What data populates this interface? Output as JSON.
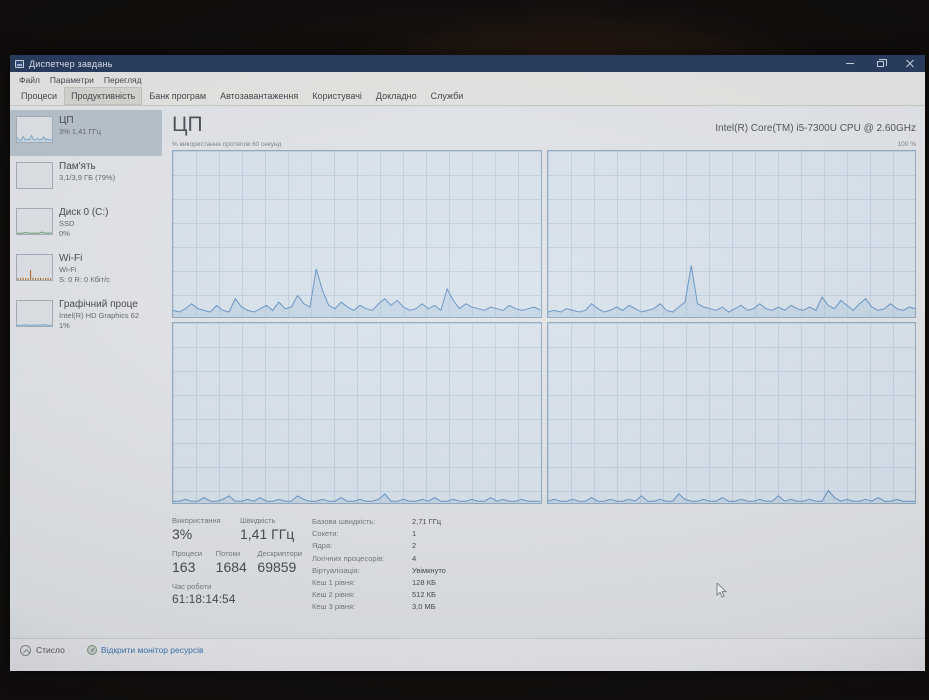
{
  "window": {
    "title": "Диспетчер завдань"
  },
  "menu": {
    "items": [
      "Файл",
      "Параметри",
      "Перегляд"
    ]
  },
  "tabs": {
    "items": [
      {
        "label": "Процеси",
        "selected": false
      },
      {
        "label": "Продуктивність",
        "selected": true
      },
      {
        "label": "Банк програм",
        "selected": false
      },
      {
        "label": "Автозавантаження",
        "selected": false
      },
      {
        "label": "Користувачі",
        "selected": false
      },
      {
        "label": "Докладно",
        "selected": false
      },
      {
        "label": "Служби",
        "selected": false
      }
    ]
  },
  "sidebar": {
    "items": [
      {
        "title": "ЦП",
        "line1": "3% 1,41 ГГц",
        "line2": "",
        "selected": true,
        "spark": {
          "type": "line",
          "color": "#7da7cf",
          "values": [
            18,
            8,
            6,
            22,
            8,
            12,
            8,
            26,
            10,
            8,
            14,
            8,
            10,
            20,
            8,
            12,
            6,
            10
          ]
        }
      },
      {
        "title": "Пам'ять",
        "line1": "3,1/3,9 ГБ (79%)",
        "line2": "",
        "selected": false,
        "spark": {
          "type": "none",
          "color": "#9a8fc0",
          "values": []
        }
      },
      {
        "title": "Диск 0 (C:)",
        "line1": "SSD",
        "line2": "0%",
        "selected": false,
        "spark": {
          "type": "line",
          "color": "#6f9f6f",
          "values": [
            3,
            3,
            4,
            6,
            3,
            3,
            4,
            3,
            8,
            3,
            4,
            3
          ]
        }
      },
      {
        "title": "Wi-Fi",
        "line1": "Wi-Fi",
        "line2": "S: 0 R: 0 Кбіт/с",
        "selected": false,
        "spark": {
          "type": "bars",
          "color": "#b06a2a",
          "values": [
            8,
            7,
            9,
            7,
            8,
            40,
            9,
            7,
            8,
            9,
            7,
            8,
            9,
            7
          ]
        }
      },
      {
        "title": "Графічний проце",
        "line1": "Intel(R) HD Graphics 62",
        "line2": "1%",
        "selected": false,
        "spark": {
          "type": "line",
          "color": "#7da7cf",
          "values": [
            3,
            3,
            5,
            3,
            3,
            4,
            3,
            5,
            3,
            3
          ]
        }
      }
    ]
  },
  "main": {
    "title": "ЦП",
    "cpu_name": "Intel(R) Core(TM) i5-7300U CPU @ 2.60GHz",
    "graph_label": "% використання протягом 60 секунд",
    "graph_max_label": "100 %"
  },
  "stats": {
    "left": {
      "usage_label": "Використання",
      "usage_value": "3%",
      "speed_label": "Швидкість",
      "speed_value": "1,41 ГГц",
      "processes_label": "Процеси",
      "processes_value": "163",
      "threads_label": "Потоки",
      "threads_value": "1684",
      "handles_label": "Дескриптори",
      "handles_value": "69859",
      "uptime_label": "Час роботи",
      "uptime_value": "61:18:14:54"
    },
    "right": {
      "rows": [
        {
          "label": "Базова швидкість:",
          "value": "2,71 ГГц"
        },
        {
          "label": "Сокети:",
          "value": "1"
        },
        {
          "label": "Ядра:",
          "value": "2"
        },
        {
          "label": "Логічних процесорів:",
          "value": "4"
        },
        {
          "label": "Віртуалізація:",
          "value": "Увімкнуто"
        },
        {
          "label": "Кеш 1 рівня:",
          "value": "128 КБ"
        },
        {
          "label": "Кеш 2 рівня:",
          "value": "512 КБ"
        },
        {
          "label": "Кеш 3 рівня:",
          "value": "3,0 МБ"
        }
      ]
    }
  },
  "status_bar": {
    "collapse_label": "Стисло",
    "link_label": "Відкрити монітор ресурсів"
  },
  "colors": {
    "titlebar": "#1d3154",
    "graph_line": "#6595c6",
    "graph_fill": "#a8c4de",
    "graph_bg": "#dee8f1",
    "selected_sidebar": "#b9c3cc",
    "link": "#3a72b0",
    "wifi_bars": "#b06a2a"
  },
  "chart_data": [
    {
      "type": "area",
      "title": "CPU usage core graph top-left",
      "xlabel": "60 секунд",
      "ylabel": "% використання",
      "ylim": [
        0,
        100
      ],
      "grid": true,
      "legend": "none",
      "values": [
        4,
        3,
        5,
        8,
        5,
        4,
        3,
        7,
        4,
        3,
        11,
        6,
        4,
        3,
        5,
        7,
        4,
        9,
        5,
        6,
        13,
        8,
        6,
        29,
        16,
        7,
        5,
        9,
        6,
        4,
        7,
        5,
        4,
        8,
        11,
        7,
        10,
        6,
        4,
        5,
        8,
        5,
        7,
        4,
        17,
        10,
        5,
        8,
        6,
        5,
        4,
        6,
        5,
        4,
        7,
        5,
        4,
        5,
        6,
        4
      ]
    },
    {
      "type": "area",
      "title": "CPU usage core graph top-right",
      "xlabel": "60 секунд",
      "ylabel": "% використання",
      "ylim": [
        0,
        100
      ],
      "grid": true,
      "legend": "none",
      "values": [
        3,
        4,
        3,
        5,
        4,
        3,
        4,
        8,
        5,
        3,
        4,
        6,
        4,
        7,
        5,
        3,
        4,
        5,
        8,
        4,
        3,
        6,
        9,
        31,
        8,
        6,
        5,
        4,
        6,
        3,
        5,
        7,
        4,
        5,
        8,
        5,
        4,
        6,
        4,
        7,
        5,
        4,
        6,
        4,
        12,
        7,
        5,
        10,
        7,
        4,
        8,
        11,
        6,
        4,
        5,
        8,
        5,
        4,
        6,
        5
      ]
    },
    {
      "type": "area",
      "title": "CPU usage core graph bottom-left",
      "xlabel": "60 секунд",
      "ylabel": "% використання",
      "ylim": [
        0,
        100
      ],
      "grid": true,
      "legend": "none",
      "values": [
        1,
        1,
        2,
        1,
        1,
        3,
        1,
        1,
        2,
        4,
        1,
        1,
        2,
        1,
        3,
        1,
        1,
        2,
        1,
        1,
        4,
        2,
        1,
        1,
        2,
        1,
        1,
        3,
        1,
        1,
        2,
        1,
        1,
        2,
        5,
        1,
        1,
        2,
        1,
        1,
        2,
        1,
        3,
        1,
        1,
        2,
        1,
        1,
        2,
        1,
        1,
        3,
        1,
        2,
        1,
        1,
        2,
        1,
        1,
        1
      ]
    },
    {
      "type": "area",
      "title": "CPU usage core graph bottom-right",
      "xlabel": "60 секунд",
      "ylabel": "% використання",
      "ylim": [
        0,
        100
      ],
      "grid": true,
      "legend": "none",
      "values": [
        1,
        2,
        1,
        1,
        2,
        1,
        1,
        3,
        1,
        1,
        2,
        1,
        1,
        2,
        1,
        4,
        1,
        1,
        2,
        1,
        1,
        5,
        2,
        1,
        1,
        2,
        1,
        1,
        3,
        1,
        1,
        2,
        1,
        1,
        2,
        1,
        1,
        4,
        1,
        2,
        1,
        1,
        2,
        1,
        1,
        7,
        3,
        1,
        2,
        1,
        1,
        2,
        1,
        3,
        1,
        1,
        2,
        1,
        1,
        1
      ]
    }
  ]
}
